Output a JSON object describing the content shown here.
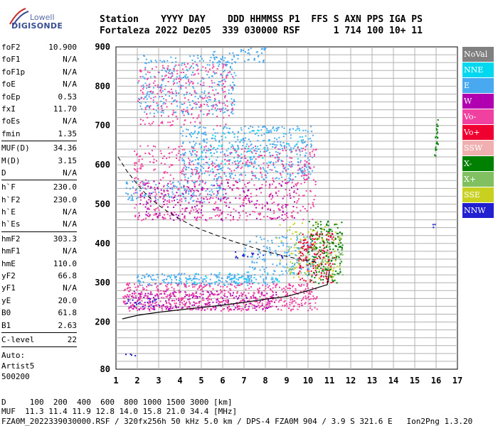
{
  "logo": {
    "line1": "Lowell",
    "line2": "DIGISONDE"
  },
  "header": {
    "row1": "Station    YYYY DAY    DDD HHMMSS P1  FFS S AXN PPS IGA PS",
    "row2": "Fortaleza 2022 Dez05  339 030000 RSF      1 714 100 10+ 11"
  },
  "params": {
    "group1": [
      {
        "label": "foF2",
        "value": "10.900"
      },
      {
        "label": "foF1",
        "value": "N/A"
      },
      {
        "label": "foF1p",
        "value": "N/A"
      },
      {
        "label": "foE",
        "value": "N/A"
      },
      {
        "label": "foEp",
        "value": "0.53"
      },
      {
        "label": "fxI",
        "value": "11.70"
      },
      {
        "label": "foEs",
        "value": "N/A"
      },
      {
        "label": "fmin",
        "value": "1.35"
      }
    ],
    "group2": [
      {
        "label": "MUF(D)",
        "value": "34.36"
      },
      {
        "label": "M(D)",
        "value": "3.15"
      },
      {
        "label": "D",
        "value": "N/A"
      }
    ],
    "group3": [
      {
        "label": "h`F",
        "value": "230.0"
      },
      {
        "label": "h`F2",
        "value": "230.0"
      },
      {
        "label": "h`E",
        "value": "N/A"
      },
      {
        "label": "h`Es",
        "value": "N/A"
      }
    ],
    "group4": [
      {
        "label": "hmF2",
        "value": "303.3"
      },
      {
        "label": "hmF1",
        "value": "N/A"
      },
      {
        "label": "hmE",
        "value": "110.0"
      },
      {
        "label": "yF2",
        "value": "66.8"
      },
      {
        "label": "yF1",
        "value": "N/A"
      },
      {
        "label": "yE",
        "value": "20.0"
      },
      {
        "label": "B0",
        "value": "61.8"
      },
      {
        "label": "B1",
        "value": "2.63"
      }
    ],
    "group5": [
      {
        "label": "C-level",
        "value": "22"
      }
    ],
    "auto": [
      "Auto:",
      "Artist5",
      "500200"
    ]
  },
  "legend": [
    {
      "label": "NoVal",
      "color": "#808080"
    },
    {
      "label": "NNE",
      "color": "#00d8f0"
    },
    {
      "label": "E",
      "color": "#48a8f0"
    },
    {
      "label": "W",
      "color": "#b000b0"
    },
    {
      "label": "Vo-",
      "color": "#f040a0"
    },
    {
      "label": "Vo+",
      "color": "#f00030"
    },
    {
      "label": "SSW",
      "color": "#f0b0b0"
    },
    {
      "label": "X-",
      "color": "#008000"
    },
    {
      "label": "X+",
      "color": "#80c060"
    },
    {
      "label": "SSE",
      "color": "#c8d020"
    },
    {
      "label": "NNW",
      "color": "#2020d0"
    }
  ],
  "bottom": {
    "line1": "D     100  200  400  600  800 1000 1500 3000 [km]",
    "line2": "MUF  11.3 11.4 11.9 12.8 14.0 15.8 21.0 34.4 [MHz]",
    "line3": "FZA0M_2022339030000.RSF / 320fx256h 50 kHz 5.0 km / DPS-4 FZA0M 904 / 3.9 S 321.6 E   Ion2Png 1.3.20"
  },
  "chart_data": {
    "type": "scatter",
    "xlim": [
      1,
      17
    ],
    "ylim": [
      80,
      900
    ],
    "x_ticks": [
      1,
      2,
      3,
      4,
      5,
      6,
      7,
      8,
      9,
      10,
      11,
      12,
      13,
      14,
      15,
      16,
      17
    ],
    "y_ticks": [
      80,
      200,
      300,
      400,
      500,
      600,
      700,
      800,
      900
    ],
    "grid": true,
    "series": [
      {
        "name": "E",
        "color": "#48a8f0",
        "regions": [
          {
            "x": [
              1.9,
              8.5
            ],
            "y": [
              295,
              325
            ],
            "density": 0.6
          },
          {
            "x": [
              7.0,
              10.3
            ],
            "y": [
              320,
              420
            ],
            "density": 0.25
          },
          {
            "x": [
              1.4,
              6.2
            ],
            "y": [
              505,
              560
            ],
            "density": 0.3
          },
          {
            "x": [
              4.0,
              10.2
            ],
            "y": [
              560,
              700
            ],
            "density": 0.3
          },
          {
            "x": [
              2.0,
              6.6
            ],
            "y": [
              730,
              880
            ],
            "density": 0.25
          },
          {
            "x": [
              5.5,
              8.0
            ],
            "y": [
              860,
              900
            ],
            "density": 0.3
          }
        ]
      },
      {
        "name": "NNE",
        "color": "#00d8f0",
        "regions": [
          {
            "x": [
              3.0,
              9.5
            ],
            "y": [
              300,
              330
            ],
            "density": 0.1
          },
          {
            "x": [
              4.5,
              9.8
            ],
            "y": [
              590,
              690
            ],
            "density": 0.08
          }
        ]
      },
      {
        "name": "W",
        "color": "#b000b0",
        "regions": [
          {
            "x": [
              1.4,
              8.5
            ],
            "y": [
              232,
              280
            ],
            "density": 0.4
          },
          {
            "x": [
              2.0,
              9.5
            ],
            "y": [
              460,
              560
            ],
            "density": 0.15
          }
        ]
      },
      {
        "name": "Vo-",
        "color": "#f040a0",
        "regions": [
          {
            "x": [
              1.3,
              10.4
            ],
            "y": [
              230,
              300
            ],
            "density": 0.45
          },
          {
            "x": [
              1.8,
              10.4
            ],
            "y": [
              460,
              650
            ],
            "density": 0.2
          },
          {
            "x": [
              2.0,
              6.5
            ],
            "y": [
              700,
              860
            ],
            "density": 0.2
          }
        ]
      },
      {
        "name": "Vo+",
        "color": "#f00030",
        "regions": [
          {
            "x": [
              9.5,
              11.2
            ],
            "y": [
              300,
              430
            ],
            "density": 0.45
          }
        ]
      },
      {
        "name": "X-",
        "color": "#008000",
        "regions": [
          {
            "x": [
              10.0,
              11.6
            ],
            "y": [
              300,
              460
            ],
            "density": 0.35
          },
          {
            "x": [
              15.9,
              16.1
            ],
            "y": [
              620,
              720
            ],
            "density": 0.6
          }
        ]
      },
      {
        "name": "X+",
        "color": "#80c060",
        "regions": [
          {
            "x": [
              9.0,
              11.6
            ],
            "y": [
              320,
              440
            ],
            "density": 0.15
          }
        ]
      },
      {
        "name": "SSE",
        "color": "#c8d020",
        "regions": [
          {
            "x": [
              8.5,
              11.5
            ],
            "y": [
              310,
              460
            ],
            "density": 0.1
          }
        ]
      },
      {
        "name": "NNW",
        "color": "#2020d0",
        "regions": [
          {
            "x": [
              1.4,
              3.0
            ],
            "y": [
              240,
              260
            ],
            "density": 0.3
          },
          {
            "x": [
              1.4,
              1.9
            ],
            "y": [
              115,
              120
            ],
            "density": 0.9
          },
          {
            "x": [
              6.5,
              8.8
            ],
            "y": [
              360,
              380
            ],
            "density": 0.2
          },
          {
            "x": [
              15.8,
              15.95
            ],
            "y": [
              440,
              450
            ],
            "density": 0.9
          }
        ]
      }
    ],
    "profile_solid": {
      "x": [
        1.3,
        2,
        3,
        4,
        5,
        6,
        7,
        8,
        9,
        10,
        10.9,
        10.95,
        11.0
      ],
      "y": [
        208,
        217,
        225,
        231,
        237,
        243,
        250,
        258,
        265,
        280,
        295,
        310,
        330
      ]
    },
    "profile_dashed": {
      "x": [
        1.1,
        1.5,
        2,
        2.5,
        3,
        3.5,
        4,
        4.5,
        5,
        5.5,
        6,
        6.5,
        7,
        7.5,
        8,
        8.5,
        9,
        9.5,
        10,
        10.5
      ],
      "y": [
        620,
        585,
        550,
        520,
        497,
        478,
        462,
        447,
        435,
        425,
        415,
        405,
        397,
        388,
        380,
        373,
        367,
        361,
        356,
        351
      ]
    }
  }
}
